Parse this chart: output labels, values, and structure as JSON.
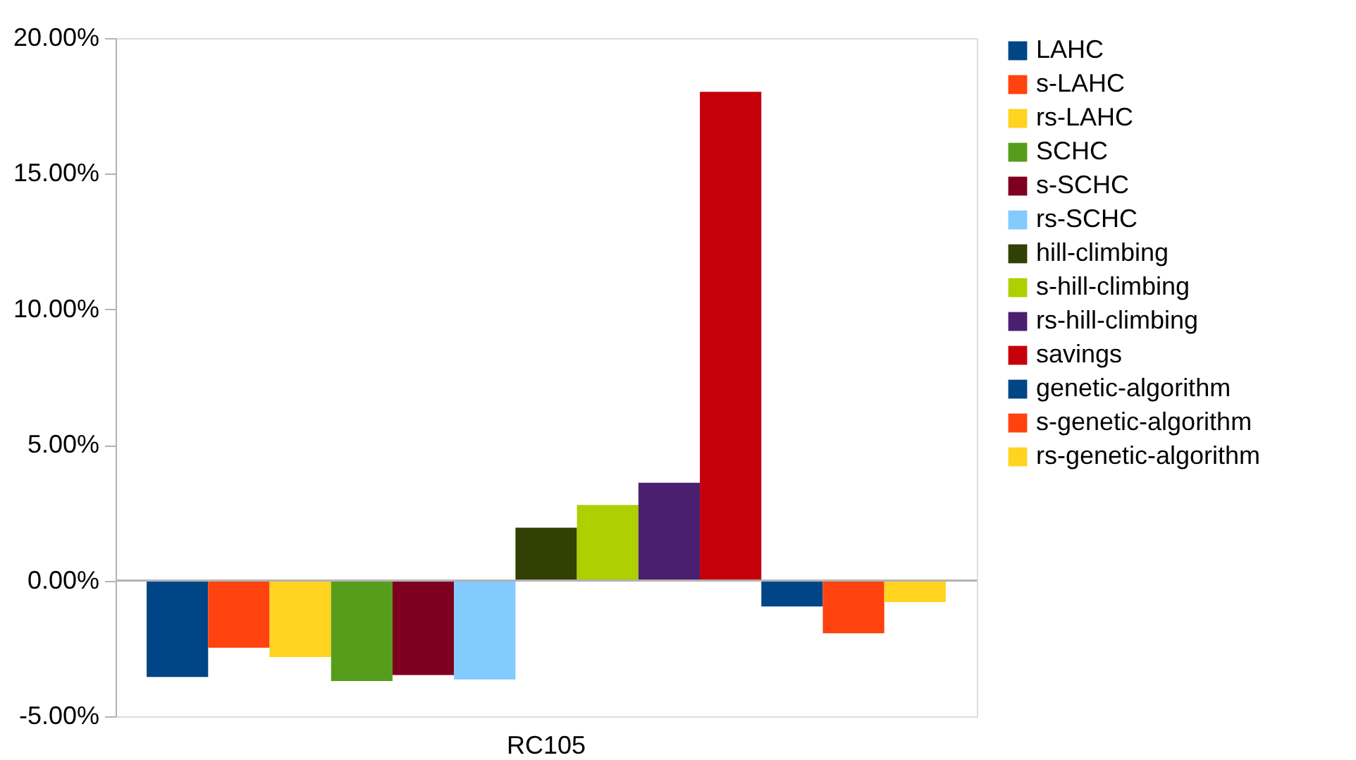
{
  "chart_data": {
    "type": "bar",
    "categories": [
      "RC105"
    ],
    "series": [
      {
        "name": "LAHC",
        "color": "#004586",
        "values": [
          -3.55
        ]
      },
      {
        "name": "s-LAHC",
        "color": "#ff420e",
        "values": [
          -2.47
        ]
      },
      {
        "name": "rs-LAHC",
        "color": "#ffd320",
        "values": [
          -2.82
        ]
      },
      {
        "name": "SCHC",
        "color": "#579d1c",
        "values": [
          -3.7
        ]
      },
      {
        "name": "s-SCHC",
        "color": "#7e0021",
        "values": [
          -3.48
        ]
      },
      {
        "name": "rs-SCHC",
        "color": "#83caff",
        "values": [
          -3.64
        ]
      },
      {
        "name": "hill-climbing",
        "color": "#314004",
        "values": [
          1.95
        ]
      },
      {
        "name": "s-hill-climbing",
        "color": "#aecf00",
        "values": [
          2.79
        ]
      },
      {
        "name": "rs-hill-climbing",
        "color": "#4b1f6f",
        "values": [
          3.61
        ]
      },
      {
        "name": "savings",
        "color": "#c5000b",
        "values": [
          18.02
        ]
      },
      {
        "name": "genetic-algorithm",
        "color": "#004586",
        "values": [
          -0.95
        ]
      },
      {
        "name": "s-genetic-algorithm",
        "color": "#ff420e",
        "values": [
          -1.94
        ]
      },
      {
        "name": "rs-genetic-algorithm",
        "color": "#ffd320",
        "values": [
          -0.79
        ]
      }
    ],
    "ylim": [
      -5,
      20
    ],
    "yticks": [
      {
        "value": -5,
        "label": "-5.00%"
      },
      {
        "value": 0,
        "label": "0.00%"
      },
      {
        "value": 5,
        "label": "5.00%"
      },
      {
        "value": 10,
        "label": "10.00%"
      },
      {
        "value": 15,
        "label": "15.00%"
      },
      {
        "value": 20,
        "label": "20.00%"
      }
    ],
    "ref_lines": [
      {
        "axis": "y",
        "value": 0,
        "color": "#b3b3b3"
      }
    ],
    "grid": false,
    "legend": "right"
  }
}
